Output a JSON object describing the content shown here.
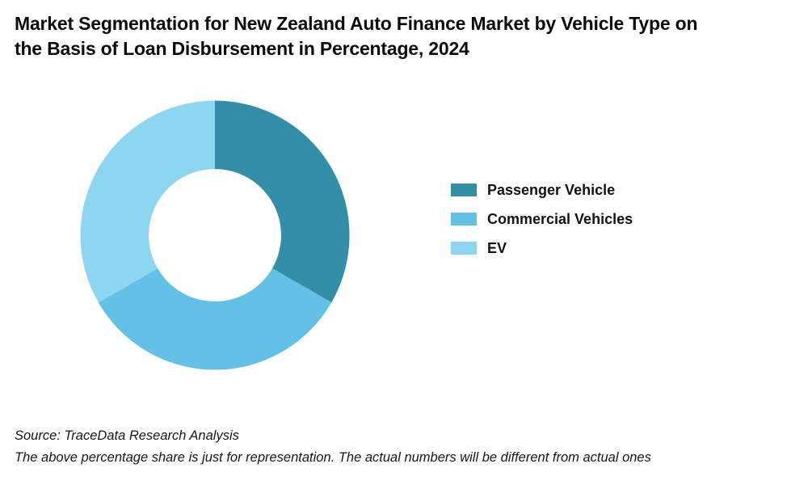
{
  "title": {
    "lines": [
      "Market Segmentation for New Zealand Auto Finance Market by Vehicle Type on",
      "the Basis of Loan Disbursement in Percentage, 2024"
    ]
  },
  "chart_data": {
    "type": "pie",
    "subtype": "donut",
    "title": "Market Segmentation for New Zealand Auto Finance Market by Vehicle Type on the Basis of Loan Disbursement in Percentage, 2024",
    "segments": [
      {
        "label": "Passenger Vehicle",
        "value": 33.33,
        "color": "#338EA8"
      },
      {
        "label": "Commercial Vehicles",
        "value": 33.33,
        "color": "#62C1E5"
      },
      {
        "label": "EV",
        "value": 33.34,
        "color": "#8CD6F2"
      }
    ],
    "start_angle_deg": 0,
    "direction": "clockwise",
    "inner_radius_ratio": 0.492,
    "legend_position": "right",
    "value_labels_shown": false
  },
  "footer": {
    "source_line": "Source: TraceData Research Analysis",
    "disclaimer_line": "The above percentage share is just for representation. The actual numbers will be different from actual ones"
  }
}
